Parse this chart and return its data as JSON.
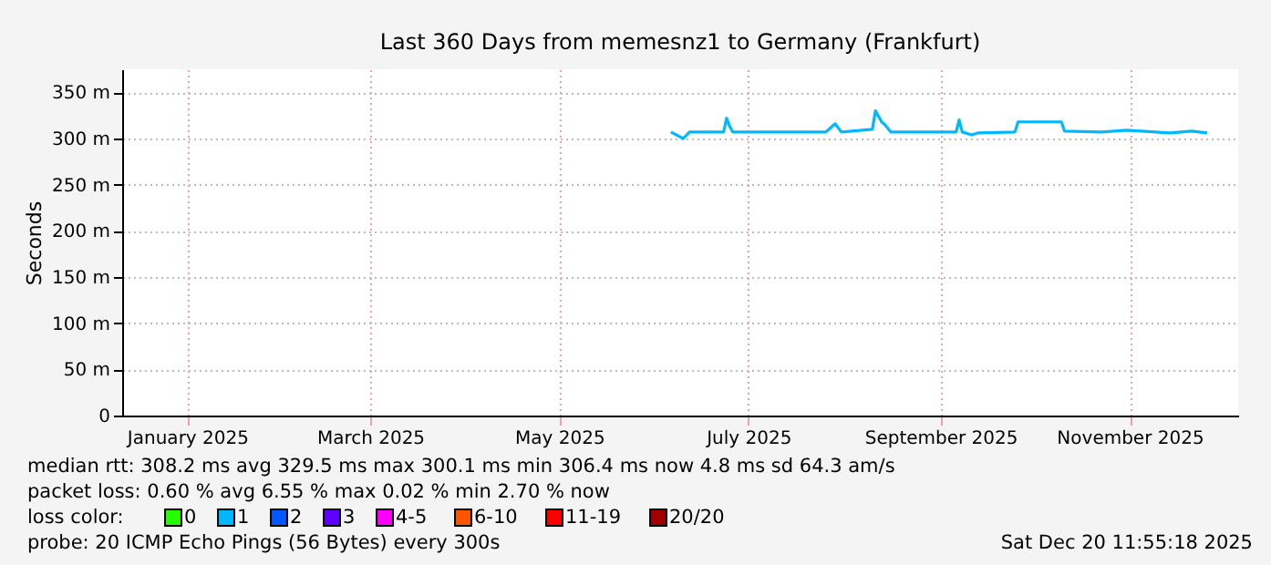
{
  "chart_data": {
    "type": "line",
    "title": "Last 360 Days from memesnz1 to Germany (Frankfurt)",
    "ylabel": "Seconds",
    "x": [
      "2025-06-20",
      "2025-06-24",
      "2025-06-26",
      "2025-07-07",
      "2025-07-08",
      "2025-07-09",
      "2025-07-10",
      "2025-08-09",
      "2025-08-12",
      "2025-08-14",
      "2025-08-24",
      "2025-08-25",
      "2025-08-27",
      "2025-08-28",
      "2025-08-30",
      "2025-09-20",
      "2025-09-21",
      "2025-09-22",
      "2025-09-25",
      "2025-09-27",
      "2025-10-09",
      "2025-10-10",
      "2025-10-24",
      "2025-10-25",
      "2025-11-06",
      "2025-11-14",
      "2025-11-28",
      "2025-12-05",
      "2025-12-10"
    ],
    "series": [
      {
        "name": "0",
        "color": "#26ff00",
        "values": [
          null,
          null,
          null,
          null,
          null,
          null,
          null,
          null,
          null,
          null,
          null,
          null,
          null,
          null,
          null,
          null,
          null,
          null,
          null,
          null,
          null,
          null,
          null,
          null,
          null,
          null,
          null,
          null,
          null
        ]
      },
      {
        "name": "1",
        "color": "#00b8ff",
        "values": [
          307,
          300,
          307,
          307,
          322,
          313,
          307,
          307,
          316,
          307,
          310,
          330,
          318,
          315,
          307,
          307,
          320,
          307,
          304,
          306,
          307,
          318,
          318,
          308,
          307,
          309,
          306,
          308,
          306
        ]
      },
      {
        "name": "2",
        "color": "#0059ff",
        "values": [
          null,
          null,
          null,
          null,
          null,
          null,
          null,
          null,
          null,
          null,
          null,
          null,
          null,
          null,
          null,
          null,
          null,
          null,
          null,
          null,
          null,
          null,
          null,
          null,
          null,
          null,
          null,
          null,
          null
        ]
      },
      {
        "name": "3",
        "color": "#5e00ff",
        "values": [
          null,
          null,
          null,
          null,
          null,
          null,
          null,
          null,
          null,
          null,
          null,
          null,
          null,
          null,
          null,
          null,
          null,
          null,
          null,
          null,
          null,
          null,
          null,
          null,
          null,
          null,
          null,
          null,
          null
        ]
      },
      {
        "name": "4-5",
        "color": "#ff00ff",
        "values": [
          null,
          null,
          null,
          null,
          null,
          null,
          null,
          null,
          null,
          null,
          null,
          null,
          null,
          null,
          null,
          null,
          null,
          null,
          null,
          null,
          null,
          null,
          null,
          null,
          null,
          null,
          null,
          null,
          null
        ]
      },
      {
        "name": "6-10",
        "color": "#ff5500",
        "values": [
          null,
          null,
          null,
          null,
          null,
          null,
          null,
          null,
          null,
          null,
          null,
          null,
          null,
          null,
          null,
          null,
          null,
          null,
          null,
          null,
          null,
          null,
          null,
          null,
          null,
          null,
          null,
          null,
          null
        ]
      },
      {
        "name": "11-19",
        "color": "#ff0000",
        "values": [
          null,
          null,
          null,
          null,
          null,
          null,
          null,
          null,
          null,
          null,
          null,
          null,
          null,
          null,
          null,
          null,
          null,
          null,
          null,
          null,
          null,
          null,
          null,
          null,
          null,
          null,
          null,
          null,
          null
        ]
      },
      {
        "name": "20/20",
        "color": "#a10000",
        "values": [
          null,
          null,
          null,
          null,
          null,
          null,
          null,
          null,
          null,
          null,
          null,
          null,
          null,
          null,
          null,
          null,
          null,
          null,
          null,
          null,
          null,
          null,
          null,
          null,
          null,
          null,
          null,
          null,
          null
        ]
      }
    ],
    "legend_title": "loss color:",
    "legend": "bottom",
    "xlim": [
      "2024-12-25",
      "2025-12-20"
    ],
    "xticks": [
      {
        "value": "2025-01-15",
        "label": "January 2025"
      },
      {
        "value": "2025-03-15",
        "label": "March 2025"
      },
      {
        "value": "2025-05-15",
        "label": "May 2025"
      },
      {
        "value": "2025-07-15",
        "label": "July 2025"
      },
      {
        "value": "2025-09-15",
        "label": "September 2025"
      },
      {
        "value": "2025-11-15",
        "label": "November 2025"
      }
    ],
    "ylim": [
      0,
      375
    ],
    "yticks": [
      0,
      {
        "value": 50,
        "label": "50 m"
      },
      {
        "value": 100,
        "label": "100 m"
      },
      {
        "value": 150,
        "label": "150 m"
      },
      {
        "value": 200,
        "label": "200 m"
      },
      {
        "value": 250,
        "label": "250 m"
      },
      {
        "value": 300,
        "label": "300 m"
      },
      {
        "value": 350,
        "label": "350 m"
      }
    ],
    "grid": true,
    "annotations": [
      "median rtt:  308.2 ms avg    329.5 ms max    300.1 ms min    306.4 ms now    4.8 ms sd    64.3   am/s",
      "packet loss: 0.60 % avg    6.55 % max    0.02 % min    2.70 % now",
      "probe:        20 ICMP Echo Pings (56 Bytes) every 300s",
      "Sat Dec 20 11:55:18 2025"
    ]
  }
}
